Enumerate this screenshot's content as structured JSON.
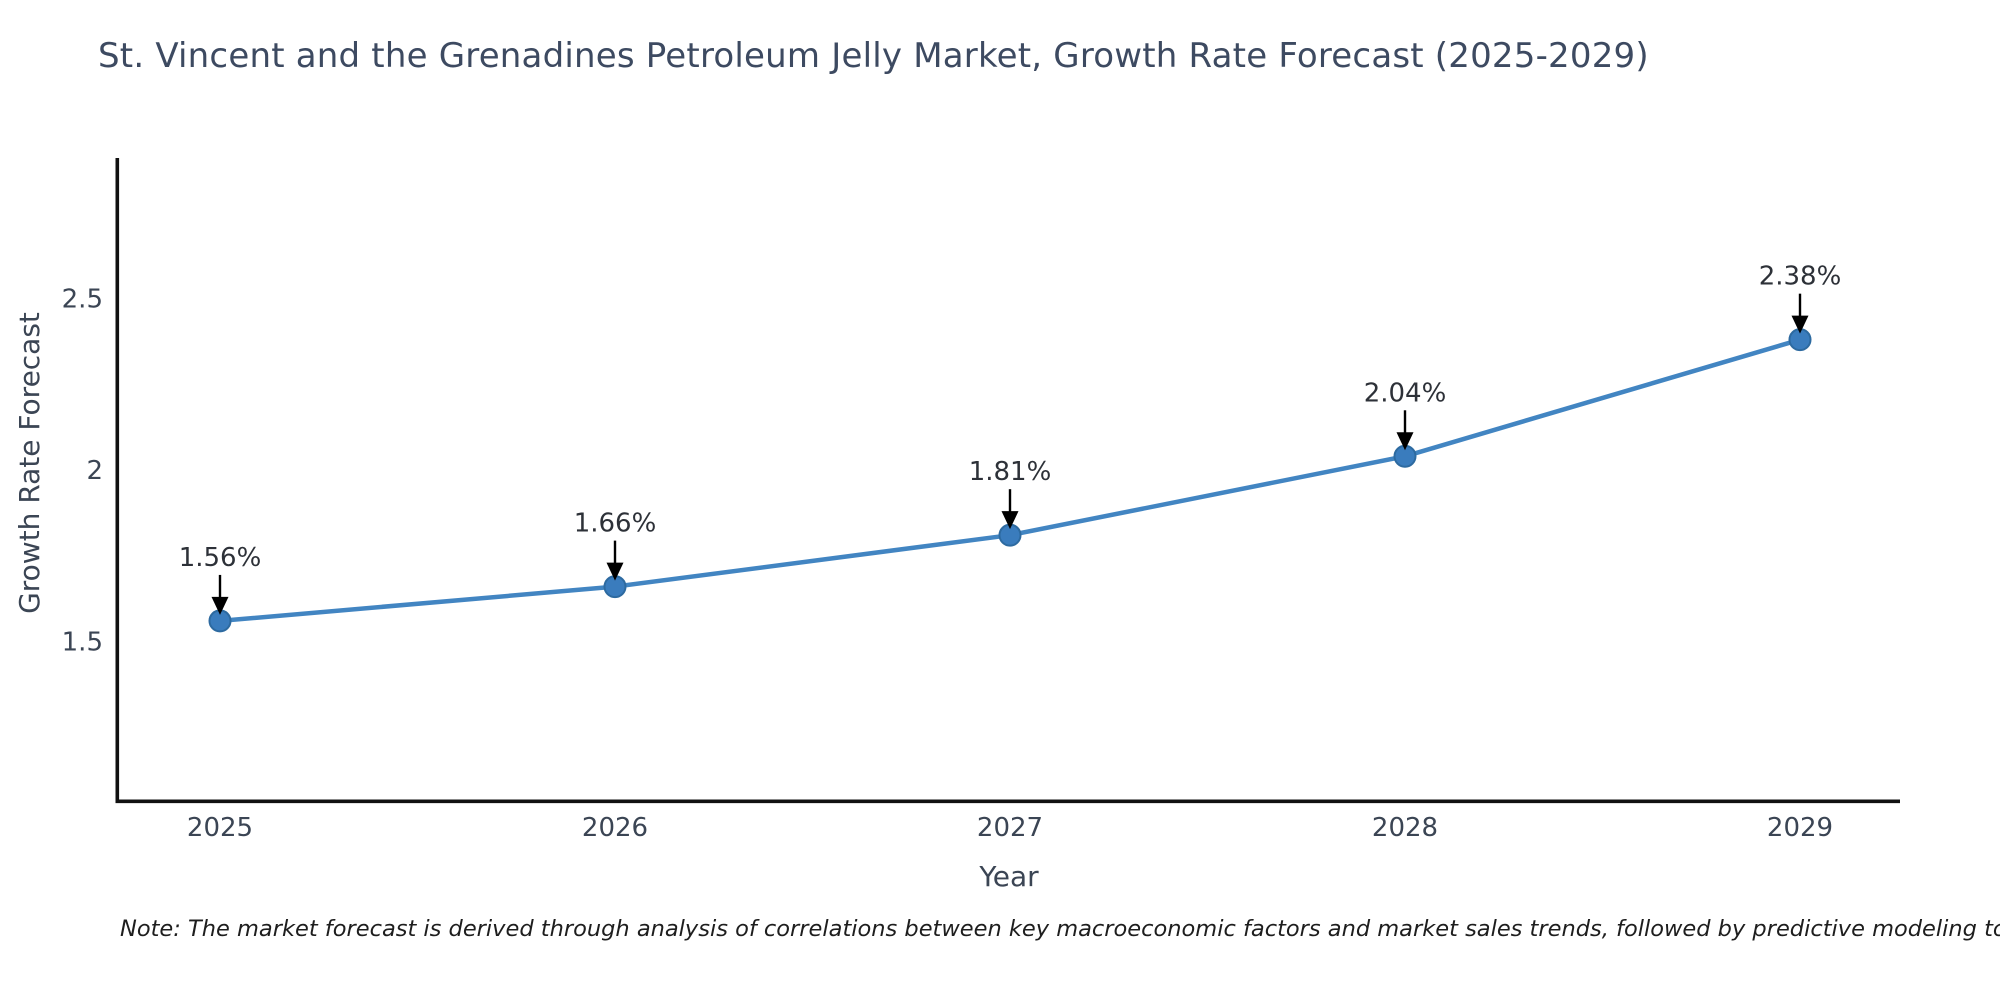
{
  "title": "St. Vincent and the Grenadines Petroleum Jelly Market, Growth Rate Forecast (2025-2029)",
  "note": "Note: The market forecast is derived through analysis of correlations between key macroeconomic factors and market sales trends, followed by predictive modeling to project future sales",
  "chart_data": {
    "type": "line",
    "title": "St. Vincent and the Grenadines Petroleum Jelly Market, Growth Rate Forecast (2025-2029)",
    "x": [
      2025,
      2026,
      2027,
      2028,
      2029
    ],
    "series": [
      {
        "name": "Growth Rate Forecast",
        "values": [
          1.56,
          1.66,
          1.81,
          2.04,
          2.38
        ]
      }
    ],
    "point_labels": [
      "1.56%",
      "1.66%",
      "1.81%",
      "2.04%",
      "2.38%"
    ],
    "xlabel": "Year",
    "ylabel": "Growth Rate Forecast",
    "xtick_labels": [
      "2025",
      "2026",
      "2027",
      "2028",
      "2029"
    ],
    "ytick_labels": [
      "1.5",
      "2",
      "2.5"
    ],
    "ytick_values": [
      1.5,
      2.0,
      2.5
    ],
    "xlim": [
      2024.74,
      2029.26
    ],
    "ylim": [
      1.04,
      2.9
    ],
    "grid": false,
    "legend_position": "none",
    "annotations_have_arrows": true,
    "colors": {
      "line": "#4285c2",
      "marker_fill": "#3a7cbd",
      "marker_edge": "#2d6aa0",
      "arrow": "#000000",
      "axis_spine": "#111111",
      "tick_text": "#3b4554",
      "annotation_text": "#2d3138",
      "title_text": "#3d4a61",
      "note_text": "#1e1e1e",
      "background": "#ffffff"
    }
  }
}
